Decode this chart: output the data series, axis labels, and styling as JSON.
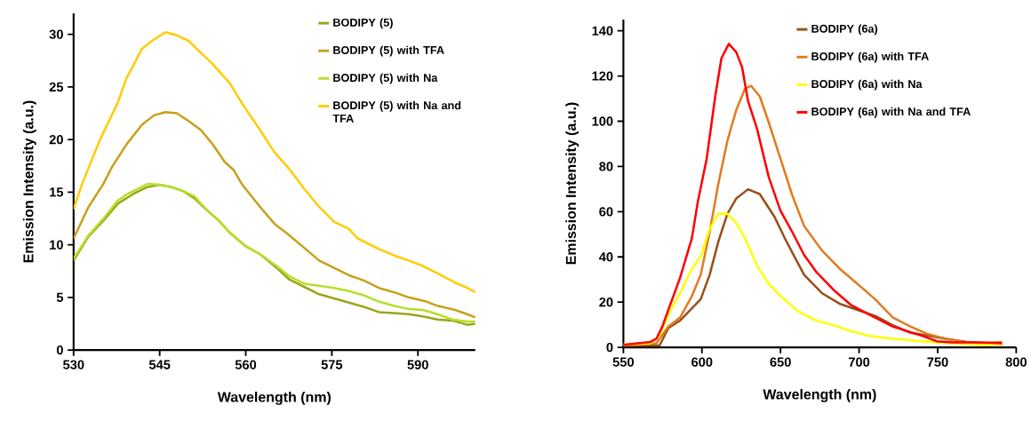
{
  "chart_data": [
    {
      "type": "line",
      "xlabel": "Wavelength (nm)",
      "ylabel": "Emission Intensity (a.u.)",
      "xlim": [
        530,
        600
      ],
      "ylim": [
        0,
        32
      ],
      "xticks": [
        530,
        545,
        560,
        575,
        590
      ],
      "yticks": [
        0,
        5,
        10,
        15,
        20,
        25,
        30
      ],
      "legend": "top right",
      "series": [
        {
          "name": "BODIPY (5)",
          "color": "#9aa61a",
          "x": [
            530,
            532.6,
            535.2,
            537.7,
            540.3,
            542.9,
            545,
            547,
            549.1,
            551.1,
            553.2,
            555.3,
            557.3,
            559.9,
            562.5,
            565.6,
            567.6,
            570.2,
            572.8,
            575.4,
            578,
            580.6,
            583.2,
            585.8,
            588.4,
            590.9,
            593.4,
            596,
            598.6,
            600
          ],
          "values": [
            8.5,
            10.8,
            12.3,
            13.9,
            14.8,
            15.5,
            15.7,
            15.5,
            15.1,
            14.4,
            13.3,
            12.3,
            11.1,
            9.9,
            9.1,
            7.7,
            6.7,
            6,
            5.3,
            4.9,
            4.5,
            4.1,
            3.6,
            3.5,
            3.4,
            3.2,
            2.9,
            2.8,
            2.4,
            2.5
          ]
        },
        {
          "name": "BODIPY (5) with TFA",
          "color": "#c9a01a",
          "x": [
            530,
            532.6,
            535.2,
            536.7,
            539.3,
            541.9,
            544,
            546,
            548,
            550.2,
            552.2,
            554.3,
            556.3,
            557.9,
            559.4,
            562.5,
            565,
            567.6,
            570.2,
            572.8,
            575.4,
            578,
            580.6,
            583.2,
            585.8,
            588.4,
            591.5,
            593.4,
            596.5,
            598.6,
            600
          ],
          "values": [
            10.6,
            13.6,
            15.8,
            17.4,
            19.6,
            21.4,
            22.3,
            22.6,
            22.5,
            21.7,
            20.9,
            19.5,
            17.9,
            17.1,
            15.7,
            13.6,
            12,
            10.9,
            9.7,
            8.5,
            7.8,
            7.1,
            6.6,
            5.9,
            5.5,
            5,
            4.6,
            4.2,
            3.8,
            3.4,
            3.1
          ]
        },
        {
          "name": "BODIPY (5) with Na",
          "color": "#b5e02a",
          "x": [
            530,
            532.6,
            535.2,
            537.7,
            539.3,
            541.9,
            542.9,
            545,
            547,
            549.1,
            551.1,
            553.2,
            555.3,
            557.3,
            559.9,
            562.5,
            565.6,
            567.6,
            570.2,
            572.8,
            575.4,
            578,
            580.6,
            583.2,
            585.8,
            588.4,
            590.9,
            593.4,
            596,
            598.6,
            600
          ],
          "values": [
            8.7,
            10.9,
            12.5,
            14.2,
            14.8,
            15.5,
            15.8,
            15.7,
            15.5,
            15.1,
            14.6,
            13.3,
            12.3,
            11.1,
            9.9,
            9.1,
            7.9,
            7,
            6.3,
            6.1,
            5.9,
            5.6,
            5.2,
            4.6,
            4.2,
            3.9,
            3.8,
            3.4,
            2.9,
            2.7,
            2.7
          ]
        },
        {
          "name": "BODIPY (5) with Na and TFA",
          "color": "#ffcc00",
          "x": [
            530,
            531.5,
            534.6,
            537.7,
            539.2,
            541.9,
            543.4,
            546,
            548,
            550,
            552.1,
            554.2,
            557.3,
            559.4,
            562.5,
            565,
            567.6,
            570.2,
            572.8,
            575.4,
            578,
            579.5,
            583.2,
            585.8,
            588.4,
            590.8,
            593.4,
            596.5,
            598.6,
            600
          ],
          "values": [
            13.4,
            15.8,
            20,
            23.5,
            25.8,
            28.6,
            29.3,
            30.2,
            29.9,
            29.4,
            28.3,
            27.2,
            25.3,
            23.4,
            20.9,
            18.8,
            17.2,
            15.3,
            13.6,
            12.2,
            11.5,
            10.6,
            9.6,
            9,
            8.5,
            8,
            7.3,
            6.4,
            5.9,
            5.5
          ]
        }
      ]
    },
    {
      "type": "line",
      "xlabel": "Wavelength (nm)",
      "ylabel": "Emission Intensity (a.u.)",
      "xlim": [
        550,
        800
      ],
      "ylim": [
        0,
        145
      ],
      "xticks": [
        550,
        600,
        650,
        700,
        750,
        800
      ],
      "yticks": [
        0,
        20,
        40,
        60,
        80,
        100,
        120,
        140
      ],
      "legend": "top right",
      "series": [
        {
          "name": "BODIPY (6a)",
          "color": "#99501a",
          "x": [
            550,
            573,
            578.6,
            586.1,
            593.6,
            599.2,
            604.9,
            610.5,
            616.2,
            621.8,
            629.3,
            636.8,
            646.2,
            653.7,
            665,
            676.3,
            687.6,
            698.9,
            710.2,
            721.4,
            732.7,
            744,
            755.3,
            768.4,
            791
          ],
          "values": [
            0.8,
            0.8,
            8.5,
            11.9,
            17.3,
            21.3,
            32.1,
            46.9,
            59.1,
            65.8,
            69.9,
            67.8,
            57.7,
            46.9,
            32.1,
            24,
            19.3,
            16.6,
            13.9,
            9.8,
            6.5,
            5.1,
            3.8,
            2.4,
            1.3
          ]
        },
        {
          "name": "BODIPY (6a) with TFA",
          "color": "#e07b20",
          "x": [
            550,
            571,
            578.6,
            586.1,
            593.6,
            599.2,
            604.9,
            610.5,
            616.2,
            621.8,
            627.4,
            631.2,
            636.8,
            642.5,
            650,
            657.5,
            665,
            676.3,
            687.6,
            698.9,
            710.2,
            721.4,
            732.7,
            744,
            755.3,
            766.5,
            777.8,
            791
          ],
          "values": [
            0.8,
            1.8,
            9.2,
            13.2,
            22.7,
            32.1,
            51,
            72.6,
            91.4,
            104.9,
            114.4,
            115.7,
            111,
            99.5,
            83.4,
            67.2,
            53.7,
            42.9,
            34.8,
            28.1,
            21.3,
            13.2,
            9.2,
            5.8,
            3.8,
            2.4,
            1.8,
            2.4
          ]
        },
        {
          "name": "BODIPY (6a) with Na",
          "color": "#ffff00",
          "x": [
            550,
            567.3,
            573,
            578.6,
            586.1,
            593.6,
            599.2,
            604.9,
            610.5,
            616.2,
            621.8,
            627.4,
            635,
            642.5,
            650,
            661.2,
            672.6,
            683.8,
            695.1,
            706.3,
            721.4,
            740.2,
            759,
            777.8,
            791
          ],
          "values": [
            1.3,
            1.8,
            5.1,
            14.6,
            24,
            34.8,
            40.2,
            52.3,
            59.1,
            59.1,
            55,
            48.3,
            36.1,
            28.1,
            22.7,
            15.9,
            11.9,
            9.8,
            7.1,
            5.1,
            3.8,
            2.7,
            1.8,
            1.1,
            1.3
          ]
        },
        {
          "name": "BODIPY (6a) with Na and TFA",
          "color": "#ff0000",
          "x": [
            550,
            567.3,
            571,
            574.8,
            578.6,
            586.1,
            593.6,
            597.4,
            603,
            608.6,
            612.4,
            617.1,
            621.8,
            625.6,
            629.3,
            635,
            642.5,
            650,
            657.5,
            665,
            672.6,
            683.8,
            695.1,
            702.6,
            713.9,
            721.4,
            730.8,
            740.2,
            749.6,
            759,
            777.8,
            791
          ],
          "values": [
            1.1,
            2.4,
            3.8,
            9.2,
            16.6,
            30.8,
            48.3,
            64.5,
            83.4,
            111.7,
            127.9,
            134.2,
            130.6,
            123.8,
            109,
            96.8,
            75.3,
            60.4,
            51,
            40.9,
            33.5,
            25.4,
            18.6,
            15.9,
            11.9,
            9.2,
            7.1,
            5.1,
            2.7,
            2.2,
            2.2,
            1.8
          ]
        }
      ]
    }
  ]
}
